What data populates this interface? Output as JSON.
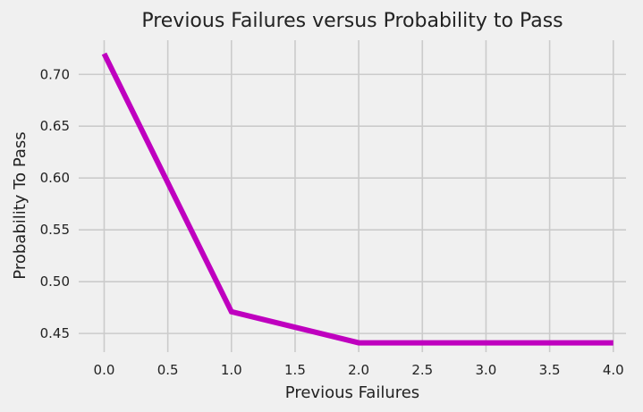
{
  "chart_data": {
    "type": "line",
    "title": "Previous Failures versus Probability to Pass",
    "xlabel": "Previous Failures",
    "ylabel": "Probability To Pass",
    "xlim": [
      -0.2,
      4.1
    ],
    "ylim": [
      0.432,
      0.733
    ],
    "xticks": [
      0.0,
      0.5,
      1.0,
      1.5,
      2.0,
      2.5,
      3.0,
      3.5,
      4.0
    ],
    "xtick_labels": [
      "0.0",
      "0.5",
      "1.0",
      "1.5",
      "2.0",
      "2.5",
      "3.0",
      "3.5",
      "4.0"
    ],
    "yticks": [
      0.45,
      0.5,
      0.55,
      0.6,
      0.65,
      0.7
    ],
    "ytick_labels": [
      "0.45",
      "0.50",
      "0.55",
      "0.60",
      "0.65",
      "0.70"
    ],
    "grid": true,
    "x": [
      0,
      1,
      2,
      3,
      4
    ],
    "series": [
      {
        "values": [
          0.72,
          0.471,
          0.441,
          0.441,
          0.441
        ],
        "color": "#bf00bf"
      }
    ]
  },
  "colors": {
    "background": "#f0f0f0",
    "grid": "#cbcbcb",
    "text": "#222222"
  }
}
